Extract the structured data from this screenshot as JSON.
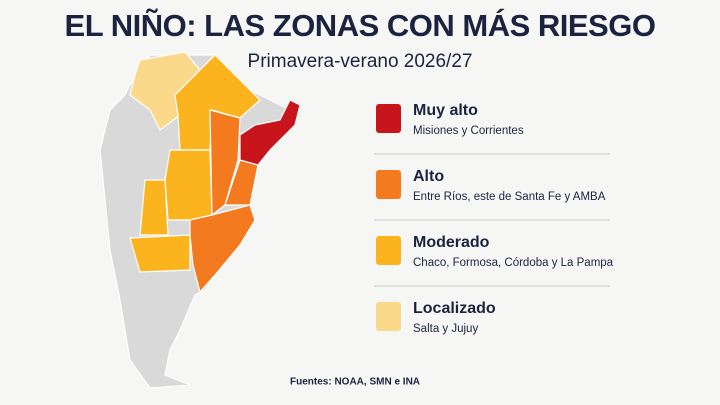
{
  "header": {
    "title": "EL NIÑO: LAS ZONAS CON MÁS RIESGO",
    "subtitle": "Primavera-verano 2026/27"
  },
  "legend": [
    {
      "label": "Muy alto",
      "description": "Misiones y Corrientes",
      "color": "#c8141b"
    },
    {
      "label": "Alto",
      "description": "Entre Ríos, este de Santa Fe y AMBA",
      "color": "#f47a1f"
    },
    {
      "label": "Moderado",
      "description": "Chaco, Formosa, Córdoba y La Pampa",
      "color": "#fbb41d"
    },
    {
      "label": "Localizado",
      "description": "Salta y Jujuy",
      "color": "#fbd98a"
    }
  ],
  "source": "Fuentes: NOAA, SMN e INA"
}
